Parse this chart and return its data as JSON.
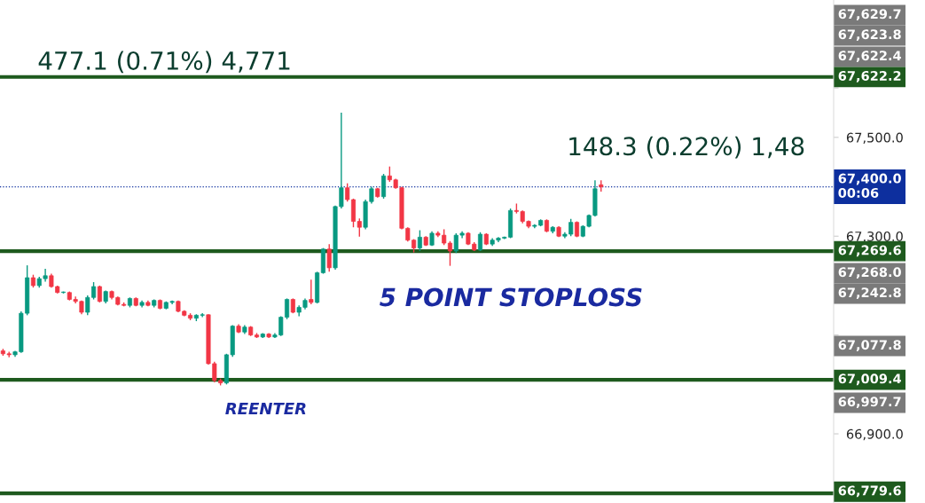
{
  "chart_data": {
    "type": "candlestick",
    "categories": [
      null,
      null,
      null,
      null,
      null,
      null,
      null,
      null,
      null,
      null,
      null,
      null,
      null,
      null,
      null,
      null,
      null,
      null,
      null,
      null,
      null,
      null,
      null,
      null,
      null,
      null,
      null,
      null,
      null,
      null,
      null,
      null,
      null,
      null,
      null,
      null,
      null,
      null,
      null,
      null,
      null,
      null,
      null,
      null,
      null,
      null,
      null,
      null,
      null,
      null,
      null,
      null,
      null,
      null,
      null,
      null,
      null,
      null,
      null,
      null,
      null,
      null,
      null,
      null,
      null,
      null,
      null,
      null,
      null,
      null,
      null,
      null,
      null,
      null,
      null,
      null,
      null,
      null,
      null,
      null,
      null,
      null,
      null,
      null,
      null,
      null,
      null,
      null,
      null,
      null,
      null,
      null,
      null,
      null,
      null,
      null,
      null,
      null,
      null,
      null,
      null,
      null,
      null,
      null,
      null,
      null,
      null,
      null,
      null,
      null,
      null,
      null,
      null,
      null,
      null,
      null,
      null,
      null,
      null,
      null,
      null,
      null,
      null,
      null,
      null,
      null,
      null,
      null,
      null,
      null,
      null,
      null,
      null,
      null,
      null,
      null,
      null,
      null
    ],
    "ohlc": [
      [
        67068,
        67072,
        67058,
        67062
      ],
      [
        67062,
        67066,
        67055,
        67060
      ],
      [
        67060,
        67068,
        67056,
        67066
      ],
      [
        67066,
        67148,
        67064,
        67144
      ],
      [
        67144,
        67241,
        67140,
        67216
      ],
      [
        67216,
        67222,
        67196,
        67200
      ],
      [
        67200,
        67218,
        67196,
        67214
      ],
      [
        67214,
        67234,
        67208,
        67220
      ],
      [
        67220,
        67224,
        67196,
        67198
      ],
      [
        67198,
        67200,
        67184,
        67186
      ],
      [
        67186,
        67188,
        67184,
        67187
      ],
      [
        67186,
        67188,
        67170,
        67172
      ],
      [
        67172,
        67178,
        67164,
        67168
      ],
      [
        67168,
        67170,
        67142,
        67146
      ],
      [
        67146,
        67180,
        67140,
        67176
      ],
      [
        67176,
        67207,
        67172,
        67198
      ],
      [
        67198,
        67200,
        67166,
        67168
      ],
      [
        67168,
        67190,
        67164,
        67188
      ],
      [
        67188,
        67190,
        67172,
        67176
      ],
      [
        67176,
        67178,
        67160,
        67162
      ],
      [
        67162,
        67166,
        67158,
        67160
      ],
      [
        67160,
        67176,
        67156,
        67174
      ],
      [
        67174,
        67176,
        67158,
        67160
      ],
      [
        67160,
        67170,
        67156,
        67166
      ],
      [
        67166,
        67170,
        67158,
        67160
      ],
      [
        67160,
        67172,
        67156,
        67170
      ],
      [
        67170,
        67172,
        67152,
        67154
      ],
      [
        67154,
        67168,
        67152,
        67166
      ],
      [
        67166,
        67170,
        67162,
        67168
      ],
      [
        67168,
        67170,
        67146,
        67148
      ],
      [
        67148,
        67150,
        67138,
        67140
      ],
      [
        67140,
        67144,
        67130,
        67134
      ],
      [
        67134,
        67142,
        67128,
        67140
      ],
      [
        67140,
        67144,
        67136,
        67141
      ],
      [
        67141,
        67142,
        67040,
        67042
      ],
      [
        67042,
        67046,
        67004,
        67008
      ],
      [
        67008,
        67012,
        66998,
        67003
      ],
      [
        67003,
        67062,
        67000,
        67060
      ],
      [
        67060,
        67120,
        67056,
        67118
      ],
      [
        67118,
        67122,
        67104,
        67106
      ],
      [
        67106,
        67120,
        67102,
        67116
      ],
      [
        67116,
        67118,
        67098,
        67100
      ],
      [
        67100,
        67104,
        67094,
        67096
      ],
      [
        67096,
        67104,
        67094,
        67102
      ],
      [
        67102,
        67104,
        67094,
        67096
      ],
      [
        67096,
        67104,
        67094,
        67100
      ],
      [
        67100,
        67138,
        67098,
        67136
      ],
      [
        67136,
        67174,
        67132,
        67172
      ],
      [
        67172,
        67174,
        67144,
        67146
      ],
      [
        67146,
        67160,
        67138,
        67156
      ],
      [
        67156,
        67174,
        67152,
        67170
      ],
      [
        67172,
        67212,
        67162,
        67166
      ],
      [
        67166,
        67228,
        67164,
        67226
      ],
      [
        67226,
        67276,
        67224,
        67274
      ],
      [
        67274,
        67284,
        67228,
        67236
      ],
      [
        67236,
        67362,
        67232,
        67360
      ],
      [
        67360,
        67550,
        67356,
        67398
      ],
      [
        67398,
        67407,
        67370,
        67374
      ],
      [
        67374,
        67376,
        67318,
        67330
      ],
      [
        67330,
        67336,
        67299,
        67318
      ],
      [
        67318,
        67374,
        67314,
        67370
      ],
      [
        67370,
        67400,
        67366,
        67396
      ],
      [
        67396,
        67398,
        67378,
        67380
      ],
      [
        67380,
        67426,
        67376,
        67422
      ],
      [
        67422,
        67441,
        67410,
        67414
      ],
      [
        67414,
        67416,
        67396,
        67398
      ],
      [
        67398,
        67400,
        67314,
        67316
      ],
      [
        67316,
        67318,
        67289,
        67292
      ],
      [
        67292,
        67294,
        67267,
        67276
      ],
      [
        67276,
        67312,
        67270,
        67298
      ],
      [
        67298,
        67300,
        67280,
        67282
      ],
      [
        67282,
        67310,
        67280,
        67306
      ],
      [
        67306,
        67310,
        67298,
        67302
      ],
      [
        67302,
        67314,
        67282,
        67286
      ],
      [
        67286,
        67290,
        67240,
        67270
      ],
      [
        67270,
        67306,
        67266,
        67302
      ],
      [
        67302,
        67310,
        67296,
        67306
      ],
      [
        67306,
        67308,
        67282,
        67284
      ],
      [
        67284,
        67288,
        67270,
        67272
      ],
      [
        67272,
        67308,
        67270,
        67304
      ],
      [
        67304,
        67306,
        67282,
        67284
      ],
      [
        67284,
        67296,
        67280,
        67292
      ],
      [
        67292,
        67298,
        67288,
        67296
      ],
      [
        67296,
        67299,
        67294,
        67298
      ],
      [
        67298,
        67356,
        67296,
        67352
      ],
      [
        67352,
        67366,
        67346,
        67350
      ],
      [
        67350,
        67352,
        67326,
        67330
      ],
      [
        67330,
        67332,
        67316,
        67320
      ],
      [
        67320,
        67324,
        67316,
        67322
      ],
      [
        67322,
        67334,
        67320,
        67332
      ],
      [
        67332,
        67334,
        67308,
        67310
      ],
      [
        67310,
        67320,
        67306,
        67318
      ],
      [
        67318,
        67320,
        67298,
        67300
      ],
      [
        67300,
        67308,
        67296,
        67304
      ],
      [
        67304,
        67335,
        67300,
        67328
      ],
      [
        67328,
        67330,
        67298,
        67300
      ],
      [
        67300,
        67322,
        67298,
        67320
      ],
      [
        67320,
        67344,
        67318,
        67342
      ],
      [
        67342,
        67413,
        67340,
        67396
      ],
      [
        67404,
        67413,
        67390,
        67400
      ],
      null,
      null,
      null,
      null,
      null,
      null,
      null,
      null,
      null,
      null,
      null,
      null,
      null,
      null,
      null,
      null,
      null,
      null,
      null,
      null,
      null,
      null,
      null,
      null,
      null,
      null,
      null,
      null,
      null,
      null,
      null,
      null,
      null,
      null,
      null,
      null,
      null,
      null
    ],
    "colors": [
      "#f23645",
      "#f23645",
      "#089981",
      "#089981",
      "#089981",
      "#f23645",
      "#089981",
      "#089981",
      "#f23645",
      "#f23645",
      "#089981",
      "#f23645",
      "#f23645",
      "#f23645",
      "#089981",
      "#089981",
      "#f23645",
      "#089981",
      "#f23645",
      "#f23645",
      "#f23645",
      "#089981",
      "#f23645",
      "#089981",
      "#f23645",
      "#089981",
      "#f23645",
      "#089981",
      "#089981",
      "#f23645",
      "#f23645",
      "#f23645",
      "#089981",
      "#089981",
      "#f23645",
      "#f23645",
      "#f23645",
      "#089981",
      "#089981",
      "#f23645",
      "#089981",
      "#f23645",
      "#f23645",
      "#089981",
      "#f23645",
      "#089981",
      "#089981",
      "#089981",
      "#f23645",
      "#089981",
      "#089981",
      "#f23645",
      "#089981",
      "#089981",
      "#f23645",
      "#089981",
      "#089981",
      "#f23645",
      "#f23645",
      "#f23645",
      "#089981",
      "#089981",
      "#f23645",
      "#089981",
      "#f23645",
      "#f23645",
      "#f23645",
      "#f23645",
      "#f23645",
      "#089981",
      "#f23645",
      "#089981",
      "#f23645",
      "#f23645",
      "#f23645",
      "#089981",
      "#089981",
      "#f23645",
      "#f23645",
      "#089981",
      "#f23645",
      "#089981",
      "#089981",
      "#089981",
      "#089981",
      "#f23645",
      "#f23645",
      "#f23645",
      "#089981",
      "#089981",
      "#f23645",
      "#089981",
      "#f23645",
      "#089981",
      "#089981",
      "#f23645",
      "#089981",
      "#089981",
      "#089981",
      "#f23645",
      null,
      null,
      null,
      null,
      null,
      null,
      null,
      null,
      null,
      null,
      null,
      null,
      null,
      null,
      null,
      null,
      null,
      null,
      null,
      null,
      null,
      null,
      null,
      null,
      null,
      null,
      null,
      null,
      null,
      null,
      null,
      null,
      null,
      null,
      null,
      null,
      null,
      null
    ],
    "ylim": [
      66760,
      67778
    ],
    "yticks": [
      {
        "value": 66800,
        "label": null
      },
      {
        "value": 66900,
        "label": "66,900.0"
      },
      {
        "value": 67000,
        "label": null
      },
      {
        "value": 67100,
        "label": null
      },
      {
        "value": 67200,
        "label": null
      },
      {
        "value": 67300,
        "label": "67,300.0"
      },
      {
        "value": 67400,
        "label": null
      },
      {
        "value": 67500,
        "label": "67,500.0"
      },
      {
        "value": 67600,
        "label": null
      }
    ],
    "ref_lines": [
      {
        "axis": "y",
        "value": 67622.2,
        "label": "67,622.2",
        "color": "#1e5a1e",
        "line_style": "solid"
      },
      {
        "axis": "y",
        "value": 67269.6,
        "label": "67,269.6",
        "color": "#1e5a1e",
        "line_style": "solid"
      },
      {
        "axis": "y",
        "value": 67009.4,
        "label": "67,009.4",
        "color": "#1e5a1e",
        "line_style": "solid"
      },
      {
        "axis": "y",
        "value": 66779.6,
        "label": "66,779.6",
        "color": "#1e5a1e",
        "line_style": "solid"
      },
      {
        "axis": "y",
        "value": 67400,
        "label": "67,400.0\n00:06",
        "color": "#0d2f9e",
        "line_style": "dotted"
      }
    ],
    "annotations": [
      "477.1 (0.71%) 4,771",
      "148.3 (0.22%) 1,48",
      "5 POINT STOPLOSS",
      "REENTER",
      "67,629.7",
      "67,623.8",
      "67,622.4",
      "67,268.0",
      "67,242.8",
      "67,077.8",
      "66,997.7"
    ]
  }
}
